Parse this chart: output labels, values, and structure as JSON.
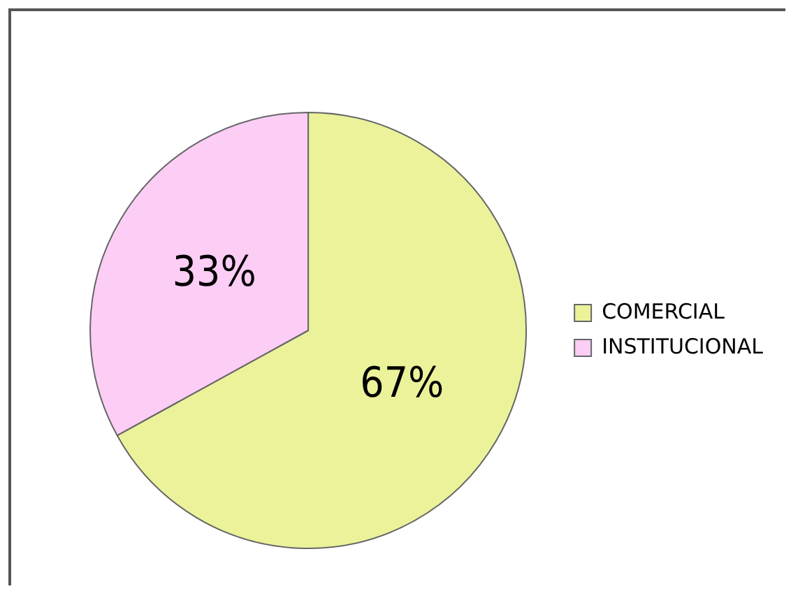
{
  "chart_data": {
    "type": "pie",
    "categories": [
      "COMERCIAL",
      "INSTITUCIONAL"
    ],
    "values": [
      67,
      33
    ],
    "colors": [
      "#ebf29a",
      "#fccdf5"
    ],
    "value_labels": [
      "67%",
      "33%"
    ],
    "legend": "right"
  }
}
